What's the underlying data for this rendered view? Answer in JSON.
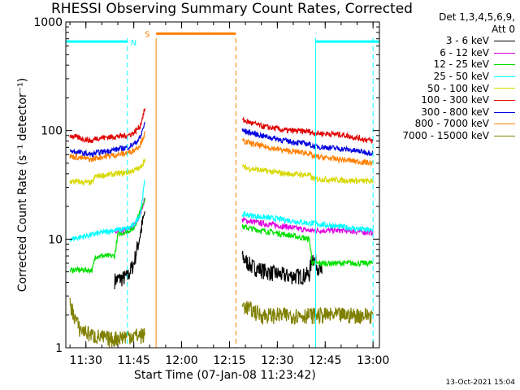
{
  "title": "RHESSI Observing Summary Count Rates, Corrected",
  "xlabel": "Start Time (07-Jan-08 11:23:42)",
  "ylabel": "Corrected Count Rate (s⁻¹ detector⁻¹)",
  "timestamp": "13-Oct-2021 15:04",
  "legend": {
    "header_line1": "Det 1,3,4,5,6,9,",
    "header_line2": "Att 0",
    "items": [
      {
        "label": "3 - 6 keV",
        "color": "#000000"
      },
      {
        "label": "6 - 12 keV",
        "color": "#e000e0"
      },
      {
        "label": "12 - 25 keV",
        "color": "#00e000"
      },
      {
        "label": "25 - 50 keV",
        "color": "#00ffff"
      },
      {
        "label": "50 - 100 keV",
        "color": "#d8d800"
      },
      {
        "label": "100 - 300 keV",
        "color": "#e00000"
      },
      {
        "label": "300 - 800 keV",
        "color": "#0000e0"
      },
      {
        "label": "800 - 7000 keV",
        "color": "#ff8000"
      },
      {
        "label": "7000 - 15000 keV",
        "color": "#808000"
      }
    ]
  },
  "annotations": {
    "night_label": "N",
    "saa_label": "S"
  },
  "chart_data": {
    "type": "line",
    "title": "RHESSI Observing Summary Count Rates, Corrected",
    "xlabel": "Start Time (07-Jan-08 11:23:42)",
    "ylabel": "Corrected Count Rate (s⁻¹ detector⁻¹)",
    "xlim": [
      "11:23:42",
      "13:02:00"
    ],
    "ylim": [
      1,
      1000
    ],
    "yscale": "log",
    "x_ticks": [
      "11:30",
      "11:45",
      "12:00",
      "12:15",
      "12:30",
      "12:45",
      "13:00"
    ],
    "y_ticks": [
      1,
      10,
      100,
      1000
    ],
    "y_tick_labels": [
      "1",
      "10",
      "100",
      "1000"
    ],
    "grid": false,
    "legend_position": "top-right",
    "flag_bars": [
      {
        "label": "N",
        "color": "#00ffff",
        "level": 660,
        "intervals": [
          [
            "11:23:42",
            "11:43:00"
          ],
          [
            "12:42:00",
            "13:02:00"
          ]
        ]
      },
      {
        "label": "S",
        "color": "#ff8000",
        "level": 780,
        "intervals": [
          [
            "11:52:00",
            "12:17:00"
          ]
        ]
      }
    ],
    "vertical_markers": [
      {
        "time": "11:43:00",
        "color": "#00ffff",
        "style": "dashed"
      },
      {
        "time": "11:52:00",
        "color": "#ff8000",
        "style": "solid"
      },
      {
        "time": "12:17:00",
        "color": "#ff8000",
        "style": "dashed"
      },
      {
        "time": "12:42:00",
        "color": "#00ffff",
        "style": "solid"
      },
      {
        "time": "13:00:00",
        "color": "#00ffff",
        "style": "dashed"
      }
    ],
    "data_gaps": [
      [
        "11:48:30",
        "12:19:00"
      ]
    ],
    "series": [
      {
        "name": "3 - 6 keV",
        "color": "#000000",
        "segments": [
          {
            "x": [
              "11:39:00",
              "11:43:00",
              "11:45:00",
              "11:47:00",
              "11:48:30"
            ],
            "y": [
              4.2,
              4.5,
              6,
              11,
              18
            ]
          },
          {
            "x": [
              "12:19:00",
              "12:22:00",
              "12:27:00",
              "12:33:00",
              "12:38:00",
              "12:40:00",
              "12:41:00",
              "12:44:00"
            ],
            "y": [
              6.8,
              5.6,
              5,
              4.6,
              4.6,
              4.8,
              7,
              4.8
            ]
          }
        ]
      },
      {
        "name": "6 - 12 keV",
        "color": "#e000e0",
        "segments": [
          {
            "x": [
              "11:39:00",
              "11:43:00",
              "11:45:00",
              "11:47:00",
              "11:48:30"
            ],
            "y": [
              11.5,
              12,
              13,
              17,
              24
            ]
          },
          {
            "x": [
              "12:19:00",
              "12:25:00",
              "12:33:00",
              "12:40:00",
              "12:41:00",
              "12:50:00",
              "13:00:00"
            ],
            "y": [
              15,
              14,
              13,
              12,
              12,
              12,
              11.5
            ]
          }
        ]
      },
      {
        "name": "12 - 25 keV",
        "color": "#00e000",
        "segments": [
          {
            "x": [
              "11:25:00",
              "11:32:00",
              "11:33:00",
              "11:39:00",
              "11:40:00",
              "11:45:00",
              "11:48:30"
            ],
            "y": [
              5.2,
              5.2,
              7,
              7,
              11,
              12.5,
              24
            ]
          },
          {
            "x": [
              "12:19:00",
              "12:25:00",
              "12:33:00",
              "12:40:00",
              "12:41:00",
              "12:50:00",
              "13:00:00"
            ],
            "y": [
              13,
              12,
              11,
              10,
              6,
              6,
              6
            ]
          }
        ]
      },
      {
        "name": "25 - 50 keV",
        "color": "#00ffff",
        "segments": [
          {
            "x": [
              "11:25:00",
              "11:32:00",
              "11:38:00",
              "11:43:00",
              "11:45:00",
              "11:47:00",
              "11:48:30"
            ],
            "y": [
              10,
              11,
              12,
              12.5,
              13.5,
              17,
              35
            ]
          },
          {
            "x": [
              "12:19:00",
              "12:25:00",
              "12:33:00",
              "12:40:00",
              "12:41:00",
              "12:50:00",
              "13:00:00"
            ],
            "y": [
              17,
              16,
              15,
              14,
              14,
              13,
              12
            ]
          }
        ]
      },
      {
        "name": "50 - 100 keV",
        "color": "#d8d800",
        "segments": [
          {
            "x": [
              "11:25:00",
              "11:32:00",
              "11:33:00",
              "11:43:00",
              "11:45:00",
              "11:47:00",
              "11:48:30"
            ],
            "y": [
              34,
              33,
              38,
              41,
              43,
              45,
              55
            ]
          },
          {
            "x": [
              "12:19:00",
              "12:25:00",
              "12:33:00",
              "12:40:00",
              "12:41:00",
              "12:50:00",
              "13:00:00"
            ],
            "y": [
              46,
              43,
              40,
              39,
              36,
              35,
              34
            ]
          }
        ]
      },
      {
        "name": "100 - 300 keV",
        "color": "#e00000",
        "segments": [
          {
            "x": [
              "11:25:00",
              "11:32:00",
              "11:33:00",
              "11:43:00",
              "11:45:00",
              "11:47:00",
              "11:48:30"
            ],
            "y": [
              90,
              80,
              85,
              90,
              95,
              110,
              160
            ]
          },
          {
            "x": [
              "12:19:00",
              "12:25:00",
              "12:33:00",
              "12:40:00",
              "12:41:00",
              "12:50:00",
              "13:00:00"
            ],
            "y": [
              125,
              110,
              100,
              98,
              95,
              92,
              80
            ]
          }
        ]
      },
      {
        "name": "300 - 800 keV",
        "color": "#0000e0",
        "segments": [
          {
            "x": [
              "11:25:00",
              "11:32:00",
              "11:33:00",
              "11:43:00",
              "11:45:00",
              "11:47:00",
              "11:48:30"
            ],
            "y": [
              65,
              60,
              62,
              70,
              75,
              85,
              120
            ]
          },
          {
            "x": [
              "12:19:00",
              "12:25:00",
              "12:33:00",
              "12:40:00",
              "12:41:00",
              "12:50:00",
              "13:00:00"
            ],
            "y": [
              100,
              90,
              80,
              75,
              72,
              68,
              62
            ]
          }
        ]
      },
      {
        "name": "800 - 7000 keV",
        "color": "#ff8000",
        "segments": [
          {
            "x": [
              "11:25:00",
              "11:32:00",
              "11:33:00",
              "11:43:00",
              "11:45:00",
              "11:47:00",
              "11:48:30"
            ],
            "y": [
              58,
              54,
              56,
              62,
              66,
              74,
              95
            ]
          },
          {
            "x": [
              "12:19:00",
              "12:25:00",
              "12:33:00",
              "12:40:00",
              "12:41:00",
              "12:50:00",
              "13:00:00"
            ],
            "y": [
              80,
              72,
              65,
              62,
              58,
              54,
              50
            ]
          }
        ]
      },
      {
        "name": "7000 - 15000 keV",
        "color": "#808000",
        "segments": [
          {
            "x": [
              "11:25:00",
              "11:28:00",
              "11:32:00",
              "11:38:00",
              "11:43:00",
              "11:48:30"
            ],
            "y": [
              2.5,
              1.5,
              1.3,
              1.2,
              1.3,
              1.3
            ]
          },
          {
            "x": [
              "12:19:00",
              "12:25:00",
              "12:33:00",
              "12:40:00",
              "12:50:00",
              "13:00:00"
            ],
            "y": [
              2.5,
              2,
              2,
              2,
              2,
              2
            ]
          }
        ]
      }
    ]
  }
}
